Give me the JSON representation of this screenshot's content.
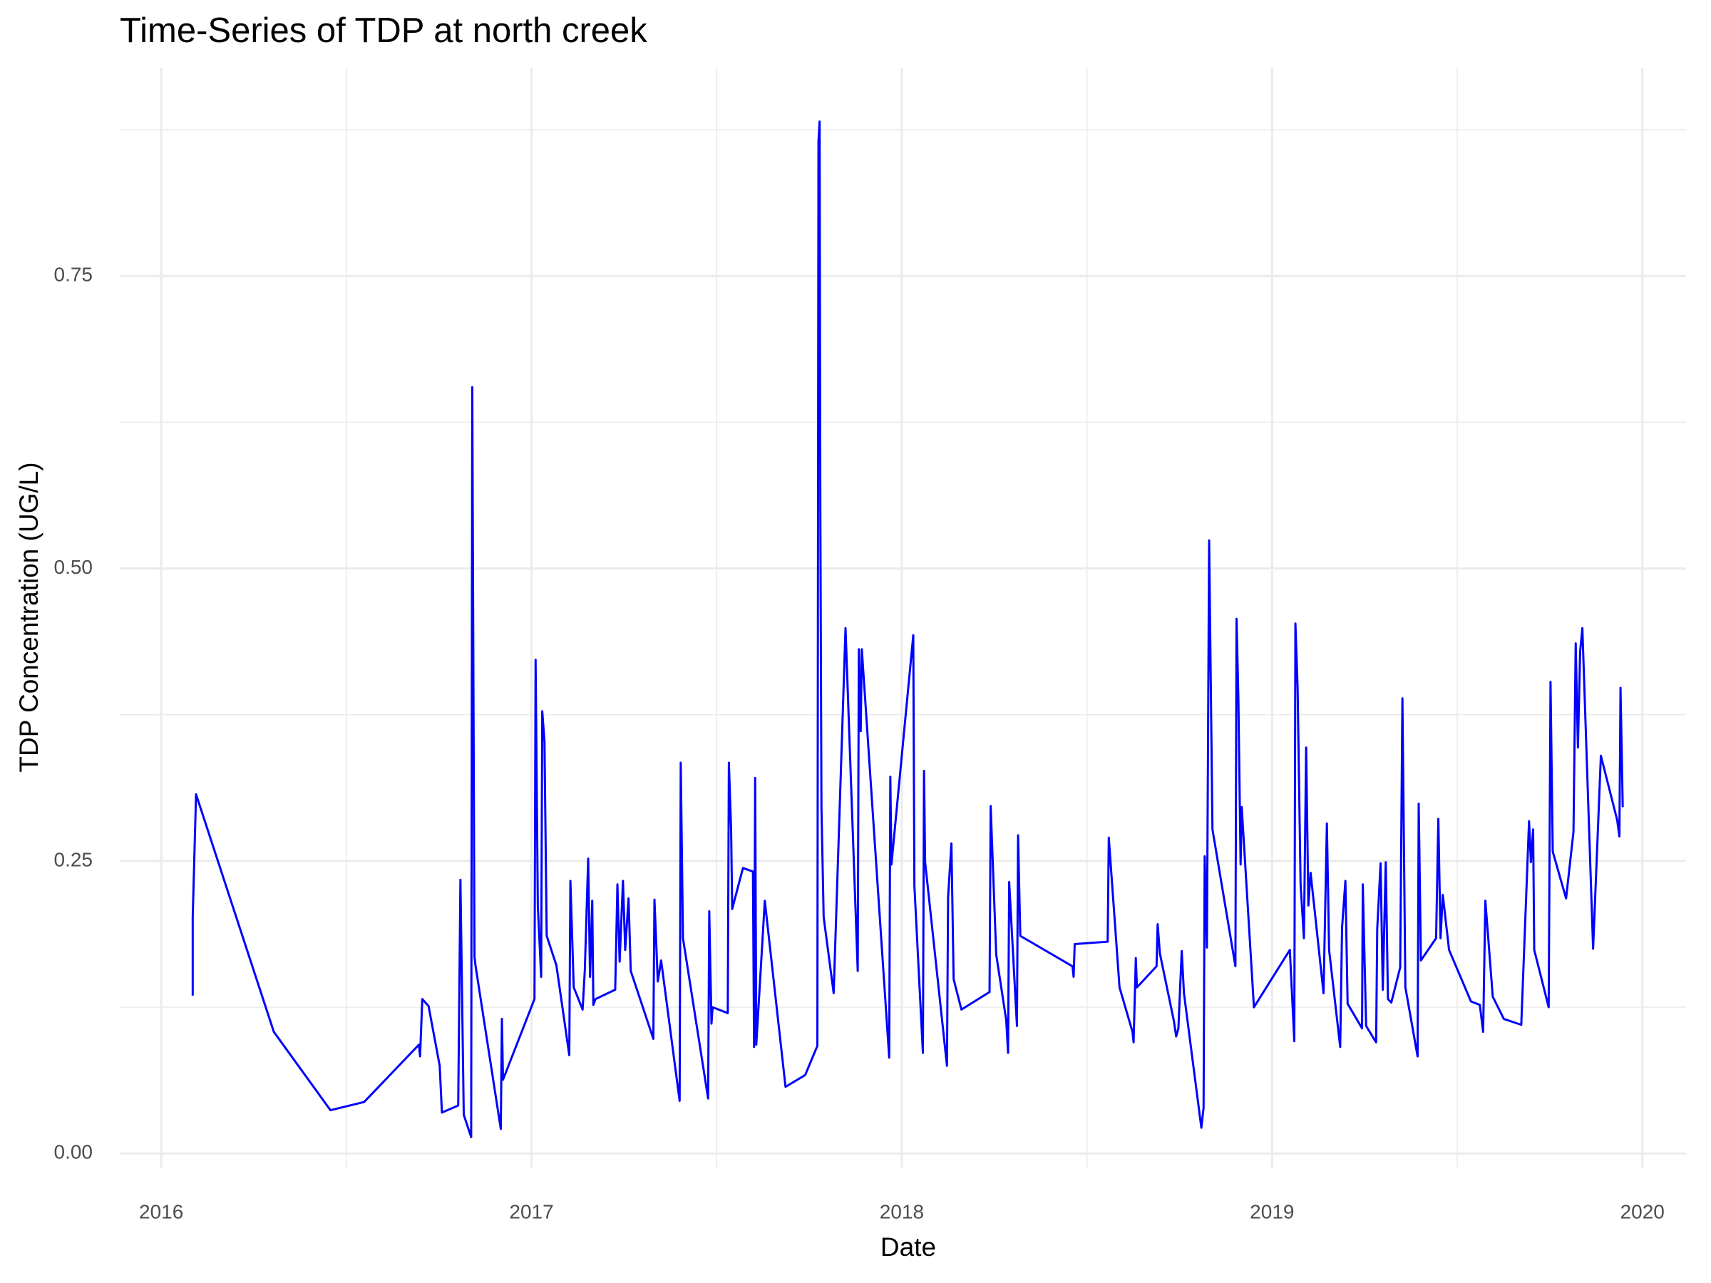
{
  "chart_data": {
    "type": "line",
    "title": "Time-Series of TDP at north creek",
    "xlabel": "Date",
    "ylabel": "TDP Concentration (UG/L)",
    "color": "#0000ff",
    "grid": true,
    "xlim": [
      2015.888,
      2020.118
    ],
    "ylim": [
      -0.012,
      0.928
    ],
    "xticks": [
      2016,
      2017,
      2018,
      2019,
      2020
    ],
    "minor_xticks": [
      2016.5,
      2017.5,
      2018.5,
      2019.5
    ],
    "yticks": [
      {
        "value": 0,
        "label": "0.00"
      },
      {
        "value": 0.25,
        "label": "0.25"
      },
      {
        "value": 0.5,
        "label": "0.50"
      },
      {
        "value": 0.75,
        "label": "0.75"
      }
    ],
    "minor_yticks": [
      0.125,
      0.375,
      0.625,
      0.875
    ],
    "x": [
      2016.085,
      2016.085,
      2016.094,
      2016.304,
      2016.457,
      2016.548,
      2016.696,
      2016.699,
      2016.705,
      2016.722,
      2016.752,
      2016.758,
      2016.802,
      2016.808,
      2016.817,
      2016.837,
      2016.84,
      2016.846,
      2016.849,
      2016.917,
      2016.92,
      2016.923,
      2017.008,
      2017.011,
      2017.017,
      2017.026,
      2017.029,
      2017.035,
      2017.041,
      2017.067,
      2017.073,
      2017.102,
      2017.105,
      2017.114,
      2017.138,
      2017.144,
      2017.153,
      2017.158,
      2017.164,
      2017.167,
      2017.173,
      2017.226,
      2017.232,
      2017.238,
      2017.247,
      2017.253,
      2017.262,
      2017.268,
      2017.329,
      2017.332,
      2017.341,
      2017.35,
      2017.4,
      2017.403,
      2017.409,
      2017.477,
      2017.48,
      2017.486,
      2017.489,
      2017.53,
      2017.533,
      2017.539,
      2017.542,
      2017.571,
      2017.598,
      2017.601,
      2017.604,
      2017.607,
      2017.63,
      2017.686,
      2017.739,
      2017.772,
      2017.775,
      2017.778,
      2017.78,
      2017.783,
      2017.789,
      2017.816,
      2017.848,
      2017.881,
      2017.884,
      2017.889,
      2017.892,
      2017.966,
      2017.969,
      2017.972,
      2018.031,
      2018.034,
      2018.057,
      2018.06,
      2018.063,
      2018.122,
      2018.125,
      2018.134,
      2018.14,
      2018.161,
      2018.237,
      2018.24,
      2018.255,
      2018.282,
      2018.287,
      2018.29,
      2018.311,
      2018.314,
      2018.32,
      2018.461,
      2018.464,
      2018.467,
      2018.556,
      2018.559,
      2018.588,
      2018.623,
      2018.626,
      2018.632,
      2018.635,
      2018.688,
      2018.691,
      2018.697,
      2018.735,
      2018.741,
      2018.747,
      2018.756,
      2018.762,
      2018.809,
      2018.815,
      2018.818,
      2018.824,
      2018.83,
      2018.839,
      2018.901,
      2018.904,
      2018.909,
      2018.915,
      2018.918,
      2018.951,
      2019.048,
      2019.06,
      2019.063,
      2019.069,
      2019.077,
      2019.086,
      2019.092,
      2019.098,
      2019.104,
      2019.139,
      2019.148,
      2019.154,
      2019.184,
      2019.189,
      2019.198,
      2019.204,
      2019.243,
      2019.245,
      2019.254,
      2019.281,
      2019.284,
      2019.293,
      2019.299,
      2019.307,
      2019.313,
      2019.322,
      2019.346,
      2019.352,
      2019.36,
      2019.393,
      2019.396,
      2019.402,
      2019.443,
      2019.449,
      2019.455,
      2019.461,
      2019.478,
      2019.537,
      2019.561,
      2019.57,
      2019.576,
      2019.596,
      2019.626,
      2019.673,
      2019.694,
      2019.699,
      2019.705,
      2019.708,
      2019.747,
      2019.752,
      2019.758,
      2019.794,
      2019.814,
      2019.82,
      2019.826,
      2019.832,
      2019.838,
      2019.867,
      2019.888,
      2019.932,
      2019.938,
      2019.941,
      2019.947
    ],
    "values": [
      0.135,
      0.202,
      0.307,
      0.104,
      0.037,
      0.044,
      0.093,
      0.083,
      0.132,
      0.126,
      0.075,
      0.035,
      0.041,
      0.234,
      0.033,
      0.014,
      0.655,
      0.168,
      0.16,
      0.021,
      0.115,
      0.063,
      0.132,
      0.422,
      0.212,
      0.151,
      0.378,
      0.352,
      0.186,
      0.161,
      0.148,
      0.084,
      0.233,
      0.142,
      0.123,
      0.157,
      0.252,
      0.151,
      0.216,
      0.127,
      0.132,
      0.14,
      0.23,
      0.164,
      0.233,
      0.174,
      0.218,
      0.156,
      0.098,
      0.217,
      0.147,
      0.165,
      0.045,
      0.334,
      0.184,
      0.047,
      0.207,
      0.111,
      0.125,
      0.12,
      0.334,
      0.277,
      0.209,
      0.244,
      0.241,
      0.091,
      0.321,
      0.093,
      0.216,
      0.057,
      0.067,
      0.092,
      0.865,
      0.882,
      0.552,
      0.296,
      0.202,
      0.137,
      0.449,
      0.156,
      0.431,
      0.361,
      0.431,
      0.082,
      0.322,
      0.247,
      0.443,
      0.229,
      0.086,
      0.327,
      0.249,
      0.075,
      0.219,
      0.265,
      0.149,
      0.123,
      0.138,
      0.297,
      0.17,
      0.114,
      0.086,
      0.232,
      0.109,
      0.272,
      0.186,
      0.16,
      0.151,
      0.179,
      0.181,
      0.27,
      0.142,
      0.104,
      0.095,
      0.167,
      0.142,
      0.16,
      0.196,
      0.171,
      0.113,
      0.1,
      0.107,
      0.173,
      0.137,
      0.022,
      0.039,
      0.254,
      0.176,
      0.524,
      0.277,
      0.16,
      0.457,
      0.389,
      0.247,
      0.296,
      0.125,
      0.174,
      0.096,
      0.453,
      0.398,
      0.23,
      0.184,
      0.347,
      0.212,
      0.24,
      0.137,
      0.282,
      0.174,
      0.091,
      0.193,
      0.233,
      0.128,
      0.107,
      0.23,
      0.109,
      0.095,
      0.192,
      0.248,
      0.14,
      0.249,
      0.132,
      0.129,
      0.159,
      0.389,
      0.142,
      0.083,
      0.299,
      0.165,
      0.184,
      0.286,
      0.184,
      0.221,
      0.174,
      0.13,
      0.127,
      0.104,
      0.216,
      0.134,
      0.115,
      0.11,
      0.284,
      0.249,
      0.277,
      0.174,
      0.125,
      0.403,
      0.258,
      0.218,
      0.275,
      0.436,
      0.347,
      0.429,
      0.449,
      0.175,
      0.34,
      0.285,
      0.271,
      0.398,
      0.296
    ]
  }
}
